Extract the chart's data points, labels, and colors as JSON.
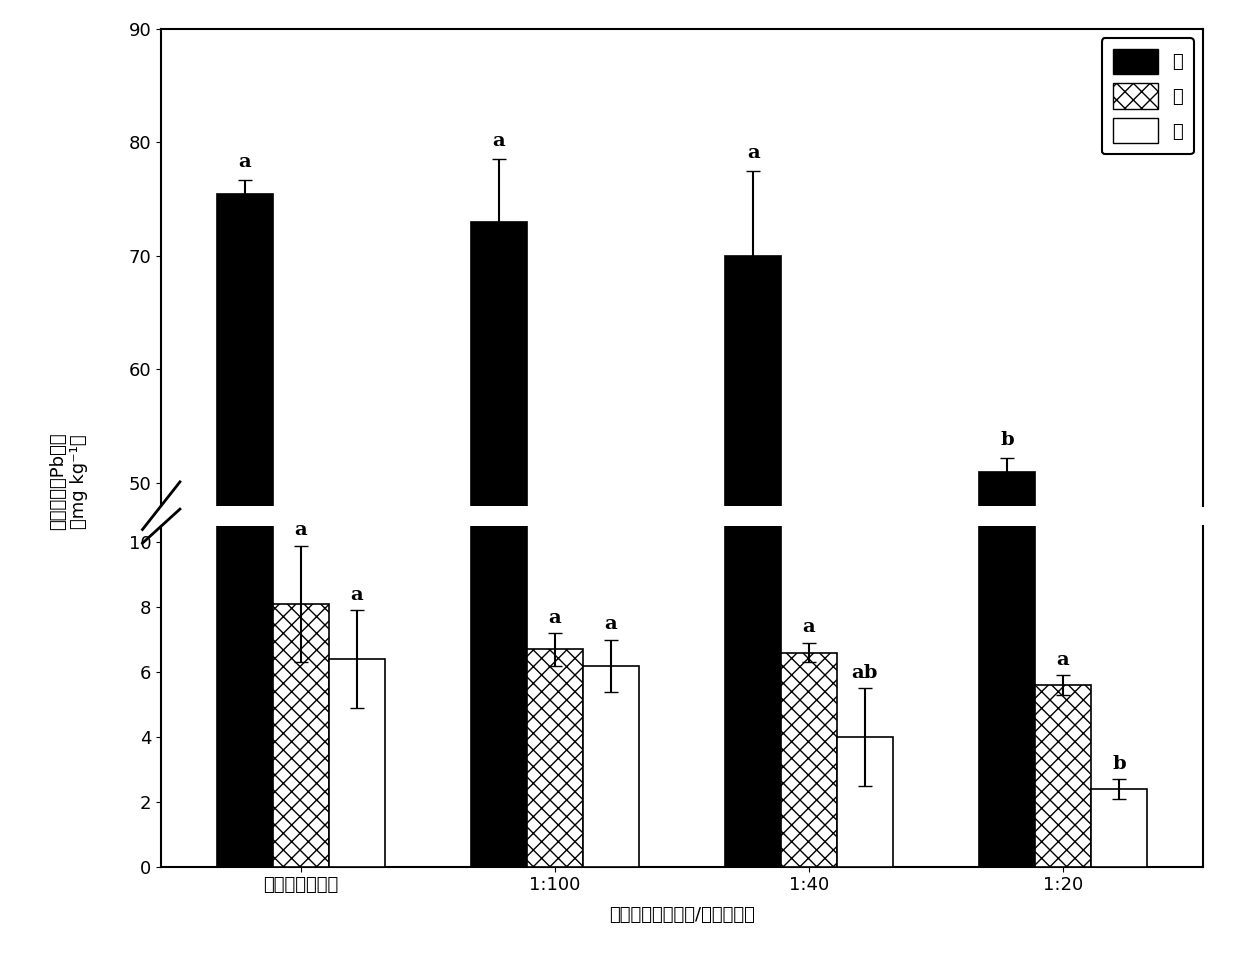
{
  "categories": [
    "对照（未施炭）",
    "1:100",
    "1:40",
    "1:20"
  ],
  "root_values": [
    75.5,
    73.0,
    70.0,
    51.0
  ],
  "stem_values": [
    8.1,
    6.7,
    6.6,
    5.6
  ],
  "leaf_values": [
    6.4,
    6.2,
    4.0,
    2.4
  ],
  "root_errors": [
    1.2,
    5.5,
    7.5,
    1.2
  ],
  "stem_errors": [
    1.8,
    0.5,
    0.3,
    0.3
  ],
  "leaf_errors": [
    1.5,
    0.8,
    1.5,
    0.3
  ],
  "root_labels": [
    "a",
    "a",
    "a",
    "b"
  ],
  "stem_labels": [
    "a",
    "a",
    "a",
    "a"
  ],
  "leaf_labels": [
    "a",
    "a",
    "ab",
    "b"
  ],
  "xlabel": "生物炭施用量（炭/土重量比）",
  "ylabel_line1": "烤烟各器官Pb含量",
  "ylabel_line2": "（mg kg⁻¹）",
  "legend_labels": [
    "根",
    "茎",
    "叶"
  ],
  "bar_width": 0.22,
  "ylim_lower": [
    0,
    10.5
  ],
  "ylim_upper": [
    48,
    90
  ],
  "yticks_lower": [
    0,
    2,
    4,
    6,
    8,
    10
  ],
  "yticks_upper": [
    50,
    60,
    70,
    80,
    90
  ],
  "background_color": "#ffffff"
}
